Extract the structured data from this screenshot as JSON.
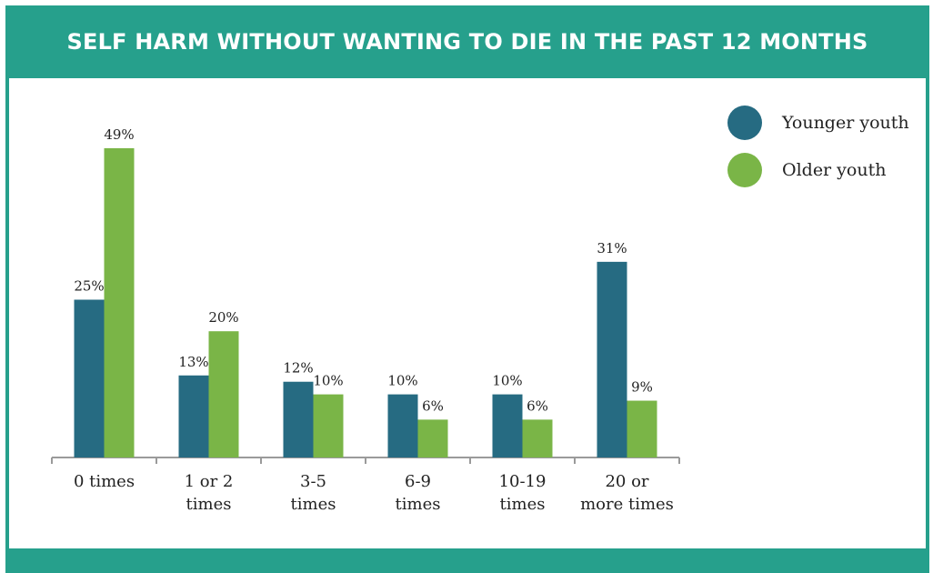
{
  "header": {
    "title": "SELF HARM WITHOUT WANTING TO DIE IN THE PAST 12 MONTHS"
  },
  "colors": {
    "accent": "#26a08c",
    "younger": "#266b82",
    "older": "#7ab547"
  },
  "chart_data": {
    "type": "bar",
    "title": "SELF HARM WITHOUT WANTING TO DIE IN THE PAST 12 MONTHS",
    "categories": [
      [
        "0 times"
      ],
      [
        "1 or 2",
        "times"
      ],
      [
        "3-5",
        "times"
      ],
      [
        "6-9",
        "times"
      ],
      [
        "10-19",
        "times"
      ],
      [
        "20 or",
        "more times"
      ]
    ],
    "series": [
      {
        "name": "Younger youth",
        "values": [
          25,
          13,
          12,
          10,
          10,
          31
        ],
        "labels": [
          "25%",
          "13%",
          "12%",
          "10%",
          "10%",
          "31%"
        ]
      },
      {
        "name": "Older youth",
        "values": [
          49,
          20,
          10,
          6,
          6,
          9
        ],
        "labels": [
          "49%",
          "20%",
          "10%",
          "6%",
          "6%",
          "9%"
        ]
      }
    ],
    "ylim": [
      0,
      50
    ],
    "grid": false,
    "legend_position": "top-right"
  }
}
